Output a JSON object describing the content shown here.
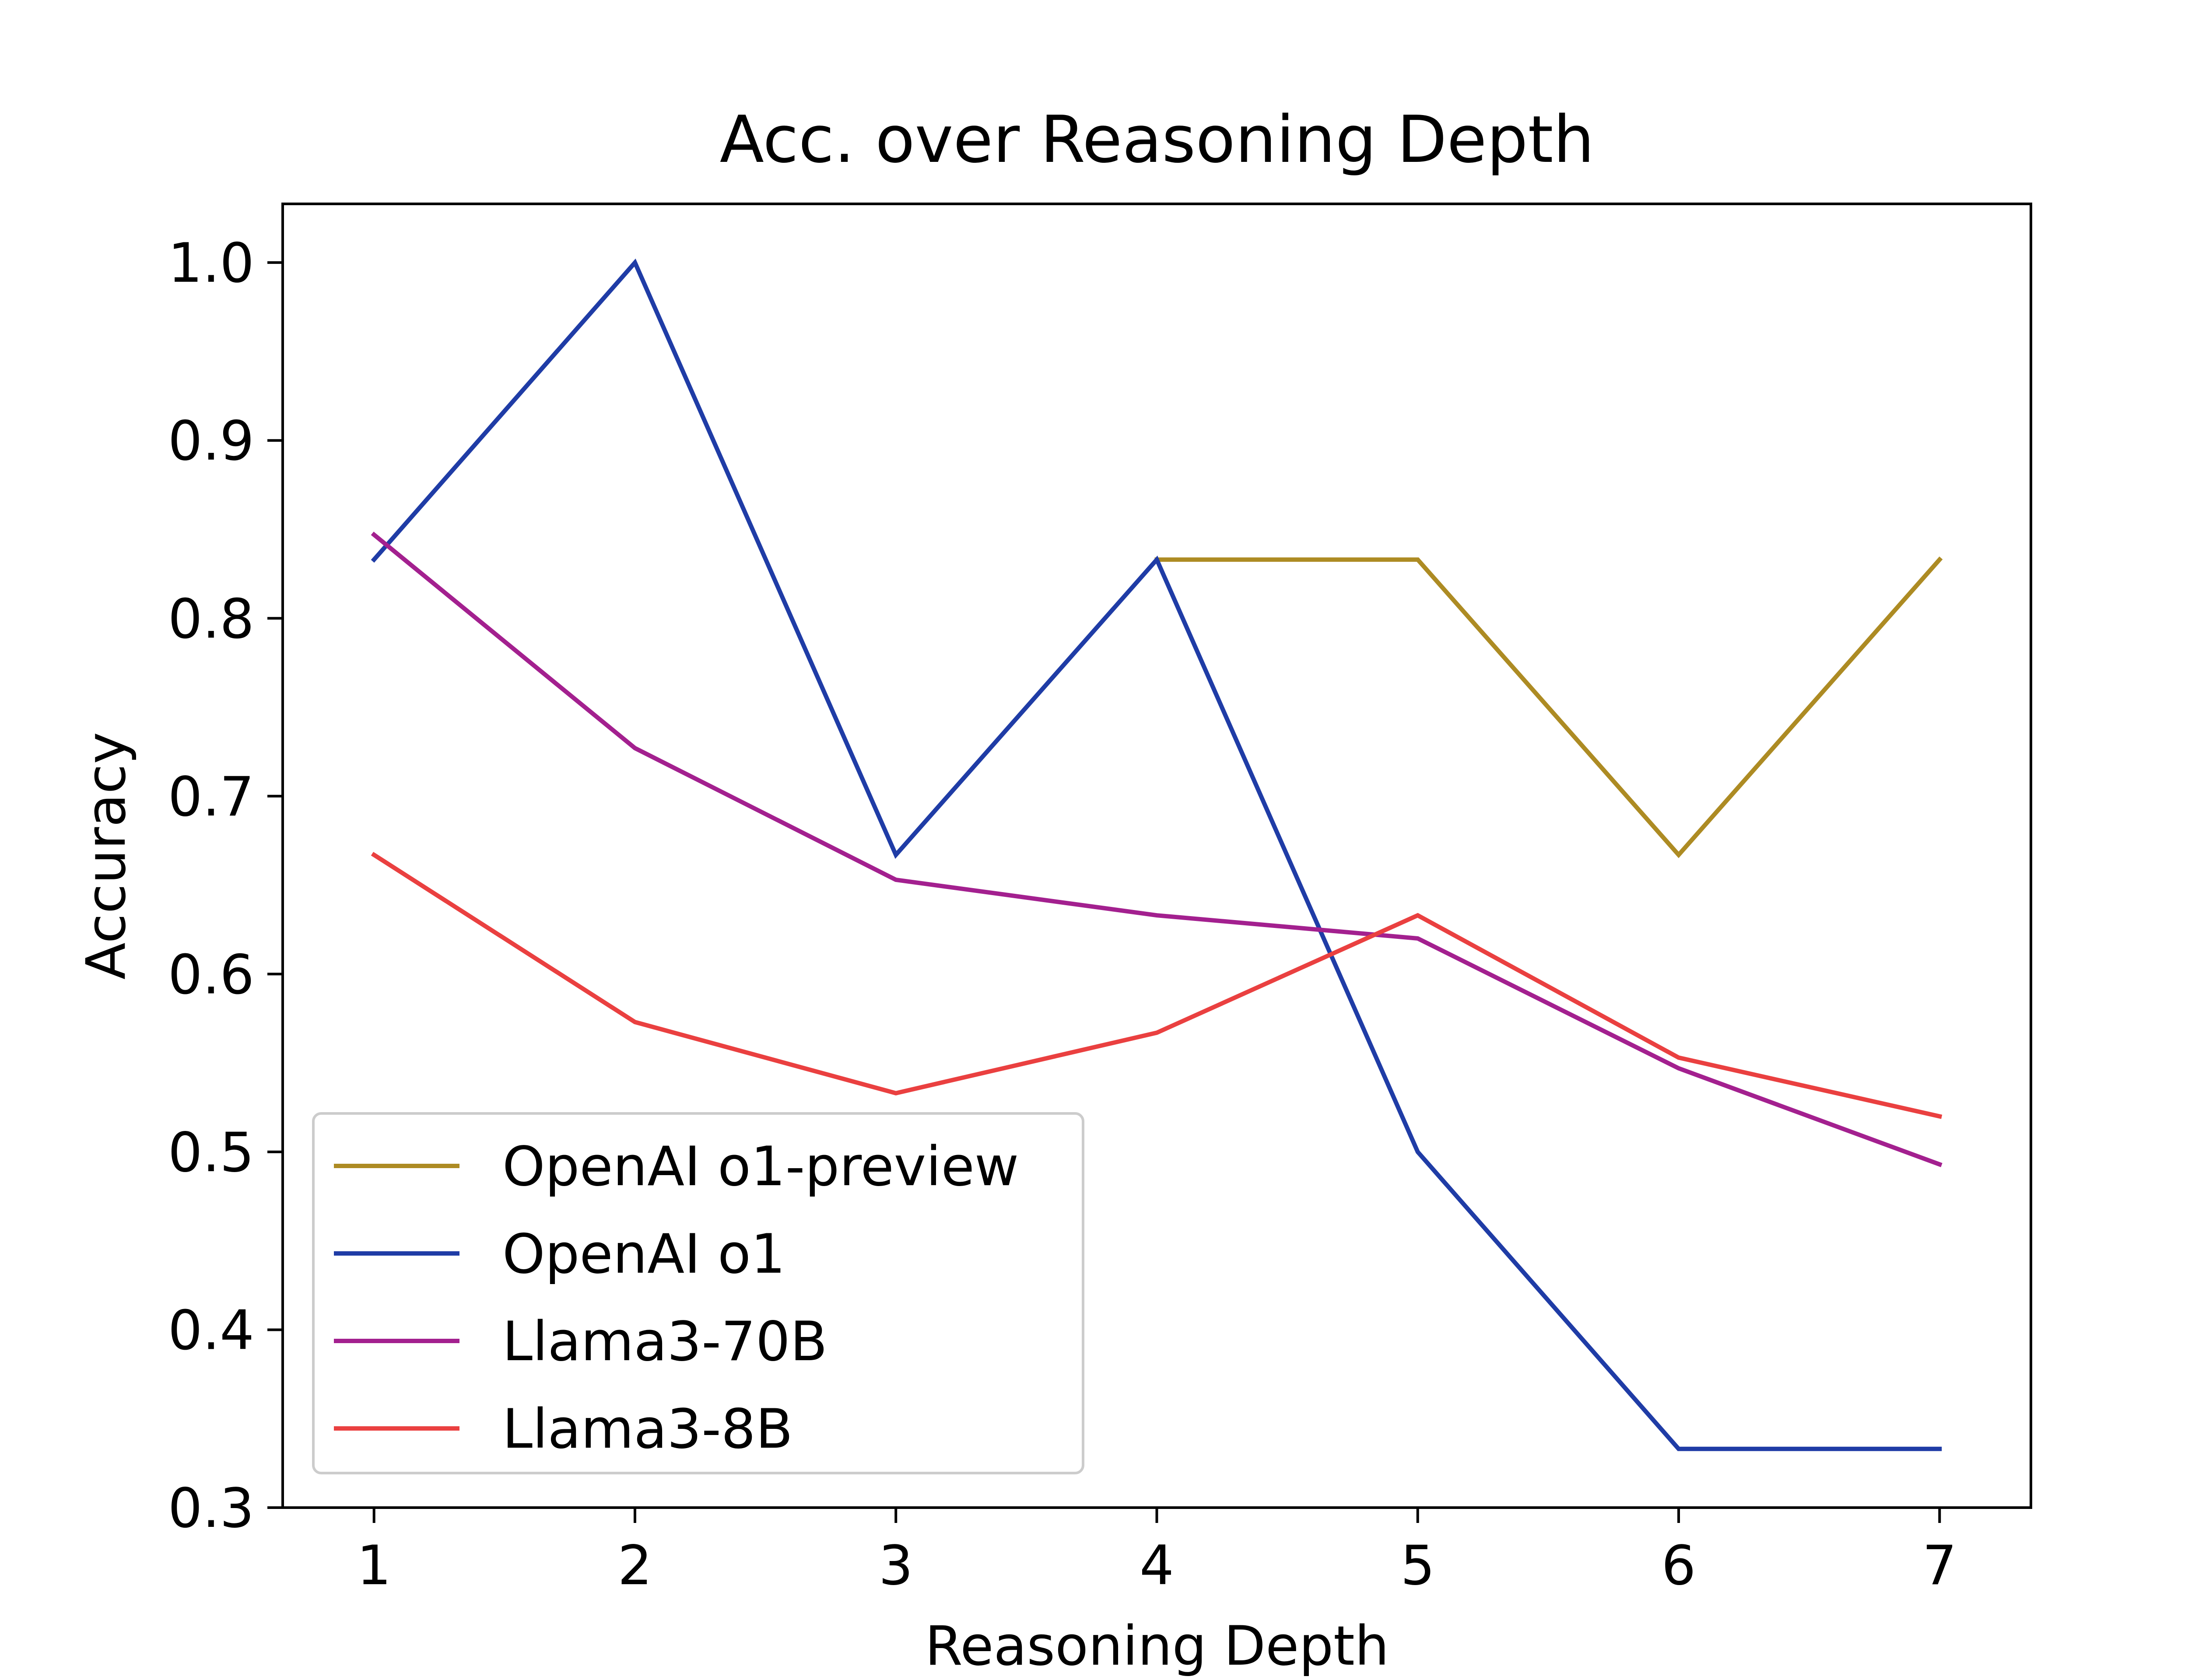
{
  "chart_data": {
    "type": "line",
    "title": "Acc. over Reasoning Depth",
    "xlabel": "Reasoning Depth",
    "ylabel": "Accuracy",
    "x": [
      1,
      2,
      3,
      4,
      5,
      6,
      7
    ],
    "xticks": [
      "1",
      "2",
      "3",
      "4",
      "5",
      "6",
      "7"
    ],
    "yticks": [
      "0.3",
      "0.4",
      "0.5",
      "0.6",
      "0.7",
      "0.8",
      "0.9",
      "1.0"
    ],
    "xlim": [
      0.65,
      7.35
    ],
    "ylim": [
      0.3,
      1.033
    ],
    "grid": false,
    "legend_position": "lower-left",
    "series": [
      {
        "name": "OpenAI o1-preview",
        "color": "#ad8b23",
        "x": [
          4,
          5,
          6,
          7
        ],
        "values": [
          0.833,
          0.833,
          0.667,
          0.833
        ]
      },
      {
        "name": "OpenAI o1",
        "color": "#1f3ca6",
        "x": [
          1,
          2,
          3,
          4,
          5,
          6,
          7
        ],
        "values": [
          0.833,
          1.0,
          0.667,
          0.833,
          0.5,
          0.333,
          0.333
        ]
      },
      {
        "name": "Llama3-70B",
        "color": "#a3208f",
        "x": [
          1,
          2,
          3,
          4,
          5,
          6,
          7
        ],
        "values": [
          0.847,
          0.727,
          0.653,
          0.633,
          0.62,
          0.547,
          0.493
        ]
      },
      {
        "name": "Llama3-8B",
        "color": "#ea4040",
        "x": [
          1,
          2,
          3,
          4,
          5,
          6,
          7
        ],
        "values": [
          0.667,
          0.573,
          0.533,
          0.567,
          0.633,
          0.553,
          0.52
        ]
      }
    ]
  }
}
